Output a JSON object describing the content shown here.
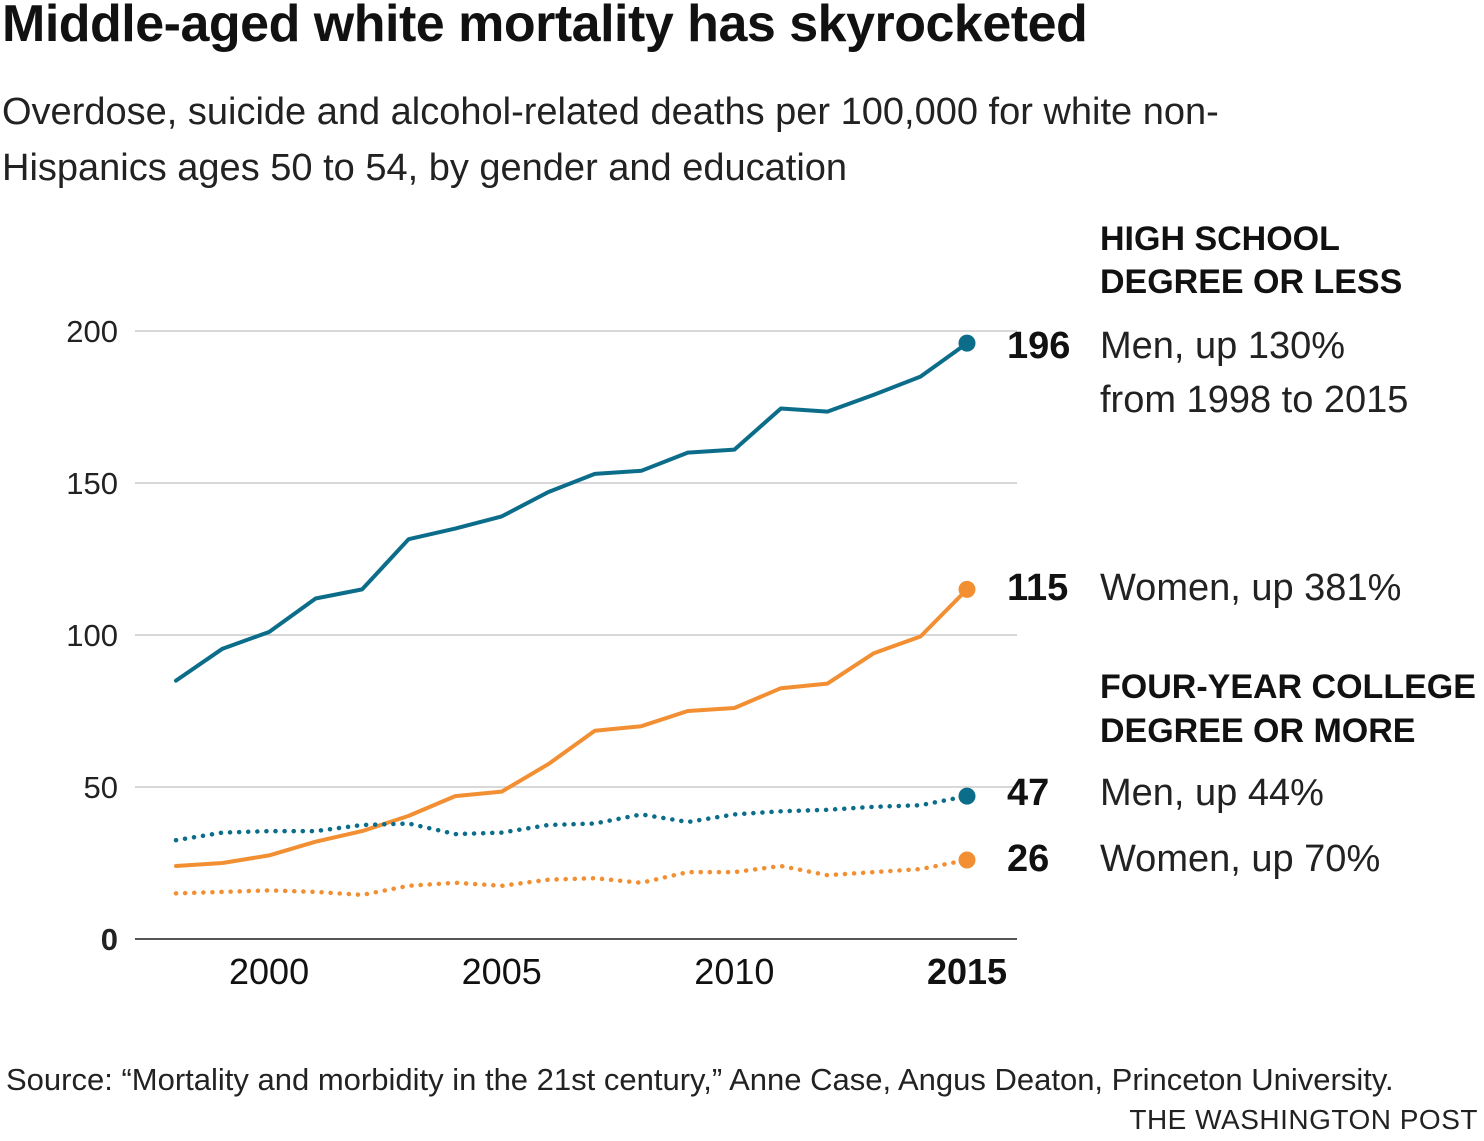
{
  "header": {
    "title": "Middle-aged white mortality has skyrocketed",
    "subtitle": "Overdose, suicide and alcohol-related deaths per 100,000 for white non-Hispanics ages 50 to 54, by gender and education"
  },
  "footer": {
    "source": "Source: “Mortality and morbidity in the 21st century,” Anne Case, Angus Deaton, Princeton University.",
    "credit": "THE WASHINGTON POST"
  },
  "colors": {
    "blue": "#0c6d8a",
    "orange": "#f28f33",
    "grid": "#cccccc",
    "axis": "#555555"
  },
  "chart_data": {
    "type": "line",
    "title": "Middle-aged white mortality has skyrocketed",
    "subtitle": "Overdose, suicide and alcohol-related deaths per 100,000 for white non-Hispanics ages 50 to 54, by gender and education",
    "x": [
      1998,
      1999,
      2000,
      2001,
      2002,
      2003,
      2004,
      2005,
      2006,
      2007,
      2008,
      2009,
      2010,
      2011,
      2012,
      2013,
      2014,
      2015
    ],
    "xlim": [
      1998,
      2015
    ],
    "ylim": [
      0,
      200
    ],
    "xticks": [
      "2000",
      "2005",
      "2010",
      "2015"
    ],
    "xtick_values": [
      2000,
      2005,
      2010,
      2015
    ],
    "yticks": [
      "0",
      "50",
      "100",
      "150",
      "200"
    ],
    "ytick_values": [
      0,
      50,
      100,
      150,
      200
    ],
    "grid": true,
    "groups": [
      {
        "label_lines": [
          "HIGH SCHOOL",
          "DEGREE OR LESS"
        ]
      },
      {
        "label_lines": [
          "FOUR-YEAR COLLEGE",
          "DEGREE OR MORE"
        ]
      }
    ],
    "series": [
      {
        "group": 0,
        "color": "#0c6d8a",
        "style": "solid",
        "end_value": "196",
        "label_lines": [
          "Men, up 130%",
          "from 1998 to 2015"
        ],
        "values": [
          85,
          95.5,
          101,
          112,
          115,
          131.5,
          135,
          139,
          147,
          153,
          154,
          160,
          161,
          174.5,
          173.5,
          179,
          185,
          196
        ]
      },
      {
        "group": 0,
        "color": "#f28f33",
        "style": "solid",
        "end_value": "115",
        "label_lines": [
          "Women, up 381%"
        ],
        "values": [
          24,
          25,
          27.5,
          32,
          35.5,
          40.5,
          47,
          48.5,
          57.5,
          68.5,
          70,
          75,
          76,
          82.5,
          84,
          94,
          99.5,
          115
        ]
      },
      {
        "group": 1,
        "color": "#0c6d8a",
        "style": "dotted",
        "end_value": "47",
        "label_lines": [
          "Men, up 44%"
        ],
        "values": [
          32.5,
          35,
          35.5,
          35.5,
          37.5,
          38,
          34.5,
          35,
          37.5,
          38,
          41,
          38.5,
          41,
          42,
          42.5,
          43.5,
          44,
          47
        ]
      },
      {
        "group": 1,
        "color": "#f28f33",
        "style": "dotted",
        "end_value": "26",
        "label_lines": [
          "Women, up 70%"
        ],
        "values": [
          15,
          15.5,
          16,
          15.5,
          14.5,
          17.5,
          18.5,
          17.5,
          19.5,
          20,
          18.5,
          22,
          22,
          24,
          21,
          22,
          23,
          26
        ]
      }
    ]
  }
}
